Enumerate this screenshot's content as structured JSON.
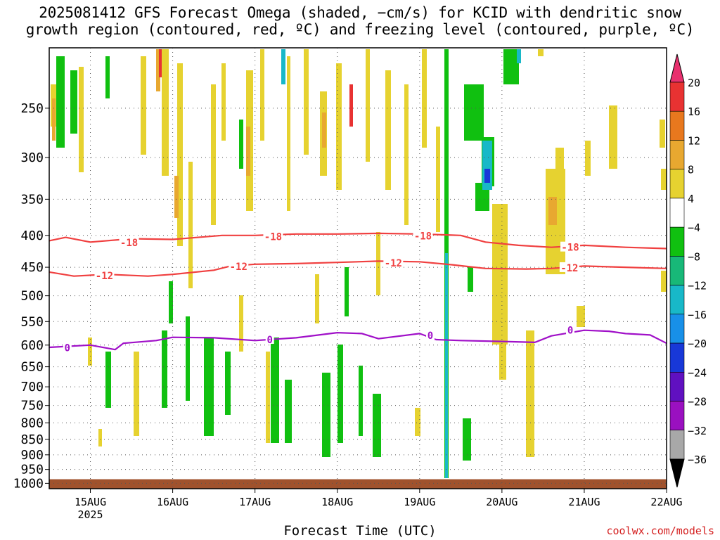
{
  "title": "2025081412 GFS Forecast Omega (shaded, −cm/s) for KCID with dendritic snow\ngrowth region (contoured, red, ºC) and freezing level (contoured, purple, ºC)",
  "xaxis_label": "Forecast Time (UTC)",
  "credit": "coolwx.com/models",
  "chart_data": {
    "type": "heatmap",
    "yaxis": {
      "ticks": [
        250,
        300,
        350,
        400,
        450,
        500,
        550,
        600,
        650,
        700,
        750,
        800,
        850,
        900,
        950,
        1000
      ],
      "range": [
        200,
        1020
      ],
      "scale": "log"
    },
    "xaxis": {
      "ticks": [
        {
          "label": "15AUG",
          "sublabel": "2025",
          "t": 1
        },
        {
          "label": "16AUG",
          "sublabel": "",
          "t": 2
        },
        {
          "label": "17AUG",
          "sublabel": "",
          "t": 3
        },
        {
          "label": "18AUG",
          "sublabel": "",
          "t": 4
        },
        {
          "label": "19AUG",
          "sublabel": "",
          "t": 5
        },
        {
          "label": "20AUG",
          "sublabel": "",
          "t": 6
        },
        {
          "label": "21AUG",
          "sublabel": "",
          "t": 7
        },
        {
          "label": "22AUG",
          "sublabel": "",
          "t": 8
        }
      ],
      "range": [
        0.5,
        8
      ]
    },
    "grid": true,
    "colorbar": {
      "labels": [
        "20",
        "16",
        "12",
        "8",
        "4",
        "−4",
        "−8",
        "−12",
        "−16",
        "−20",
        "−24",
        "−28",
        "−32",
        "−36"
      ],
      "colors": [
        "#e8306e",
        "#e83232",
        "#e8781e",
        "#e8a830",
        "#e6d230",
        "#ffffff",
        "#10c010",
        "#18b878",
        "#18b8c8",
        "#1890e8",
        "#1838d8",
        "#6010c0",
        "#9a10c0",
        "#a8a8a8",
        "#000000"
      ]
    },
    "contours": [
      {
        "label": "-18",
        "color": "#f04040",
        "pts": [
          [
            0.5,
            408
          ],
          [
            0.7,
            403
          ],
          [
            1.0,
            410
          ],
          [
            1.5,
            405
          ],
          [
            2.0,
            406
          ],
          [
            2.6,
            400
          ],
          [
            3.0,
            400
          ],
          [
            3.5,
            398
          ],
          [
            4.0,
            398
          ],
          [
            4.5,
            397
          ],
          [
            5.0,
            398
          ],
          [
            5.5,
            400
          ],
          [
            5.8,
            410
          ],
          [
            6.2,
            415
          ],
          [
            6.6,
            418
          ],
          [
            7.0,
            415
          ],
          [
            7.5,
            418
          ],
          [
            8.0,
            420
          ]
        ]
      },
      {
        "label": "-12",
        "color": "#f04040",
        "pts": [
          [
            0.5,
            458
          ],
          [
            0.8,
            465
          ],
          [
            1.2,
            462
          ],
          [
            1.7,
            465
          ],
          [
            2.0,
            462
          ],
          [
            2.5,
            455
          ],
          [
            2.7,
            448
          ],
          [
            3.0,
            445
          ],
          [
            3.5,
            444
          ],
          [
            4.0,
            442
          ],
          [
            4.5,
            440
          ],
          [
            5.0,
            441
          ],
          [
            5.4,
            446
          ],
          [
            5.8,
            452
          ],
          [
            6.3,
            453
          ],
          [
            6.6,
            452
          ],
          [
            7.0,
            448
          ],
          [
            7.5,
            450
          ],
          [
            8.0,
            452
          ]
        ]
      },
      {
        "label": "0",
        "color": "#a010c8",
        "pts": [
          [
            0.5,
            605
          ],
          [
            1.0,
            600
          ],
          [
            1.3,
            610
          ],
          [
            1.4,
            596
          ],
          [
            1.8,
            590
          ],
          [
            2.0,
            583
          ],
          [
            2.5,
            584
          ],
          [
            3.0,
            590
          ],
          [
            3.5,
            584
          ],
          [
            4.0,
            573
          ],
          [
            4.3,
            575
          ],
          [
            4.5,
            586
          ],
          [
            5.0,
            575
          ],
          [
            5.2,
            588
          ],
          [
            5.5,
            590
          ],
          [
            6.0,
            592
          ],
          [
            6.4,
            594
          ],
          [
            6.6,
            580
          ],
          [
            7.0,
            568
          ],
          [
            7.3,
            570
          ],
          [
            7.5,
            575
          ],
          [
            7.8,
            578
          ],
          [
            8.0,
            596
          ]
        ]
      }
    ],
    "contour_labels": [
      {
        "text": "-18",
        "t": 1.47,
        "p": 411,
        "color": "#f04040"
      },
      {
        "text": "-18",
        "t": 3.22,
        "p": 402,
        "color": "#f04040"
      },
      {
        "text": "-18",
        "t": 5.04,
        "p": 401,
        "color": "#f04040"
      },
      {
        "text": "-18",
        "t": 6.83,
        "p": 418,
        "color": "#f04040"
      },
      {
        "text": "-12",
        "t": 1.17,
        "p": 464,
        "color": "#f04040"
      },
      {
        "text": "-12",
        "t": 2.8,
        "p": 449,
        "color": "#f04040"
      },
      {
        "text": "-12",
        "t": 4.68,
        "p": 443,
        "color": "#f04040"
      },
      {
        "text": "-12",
        "t": 6.82,
        "p": 451,
        "color": "#f04040"
      },
      {
        "text": "0",
        "t": 0.72,
        "p": 606,
        "color": "#a010c8"
      },
      {
        "text": "0",
        "t": 3.18,
        "p": 588,
        "color": "#a010c8"
      },
      {
        "text": "0",
        "t": 5.13,
        "p": 579,
        "color": "#a010c8"
      },
      {
        "text": "0",
        "t": 6.83,
        "p": 568,
        "color": "#a010c8"
      }
    ],
    "ground": {
      "color": "#a0522d",
      "p_top": 985
    }
  }
}
